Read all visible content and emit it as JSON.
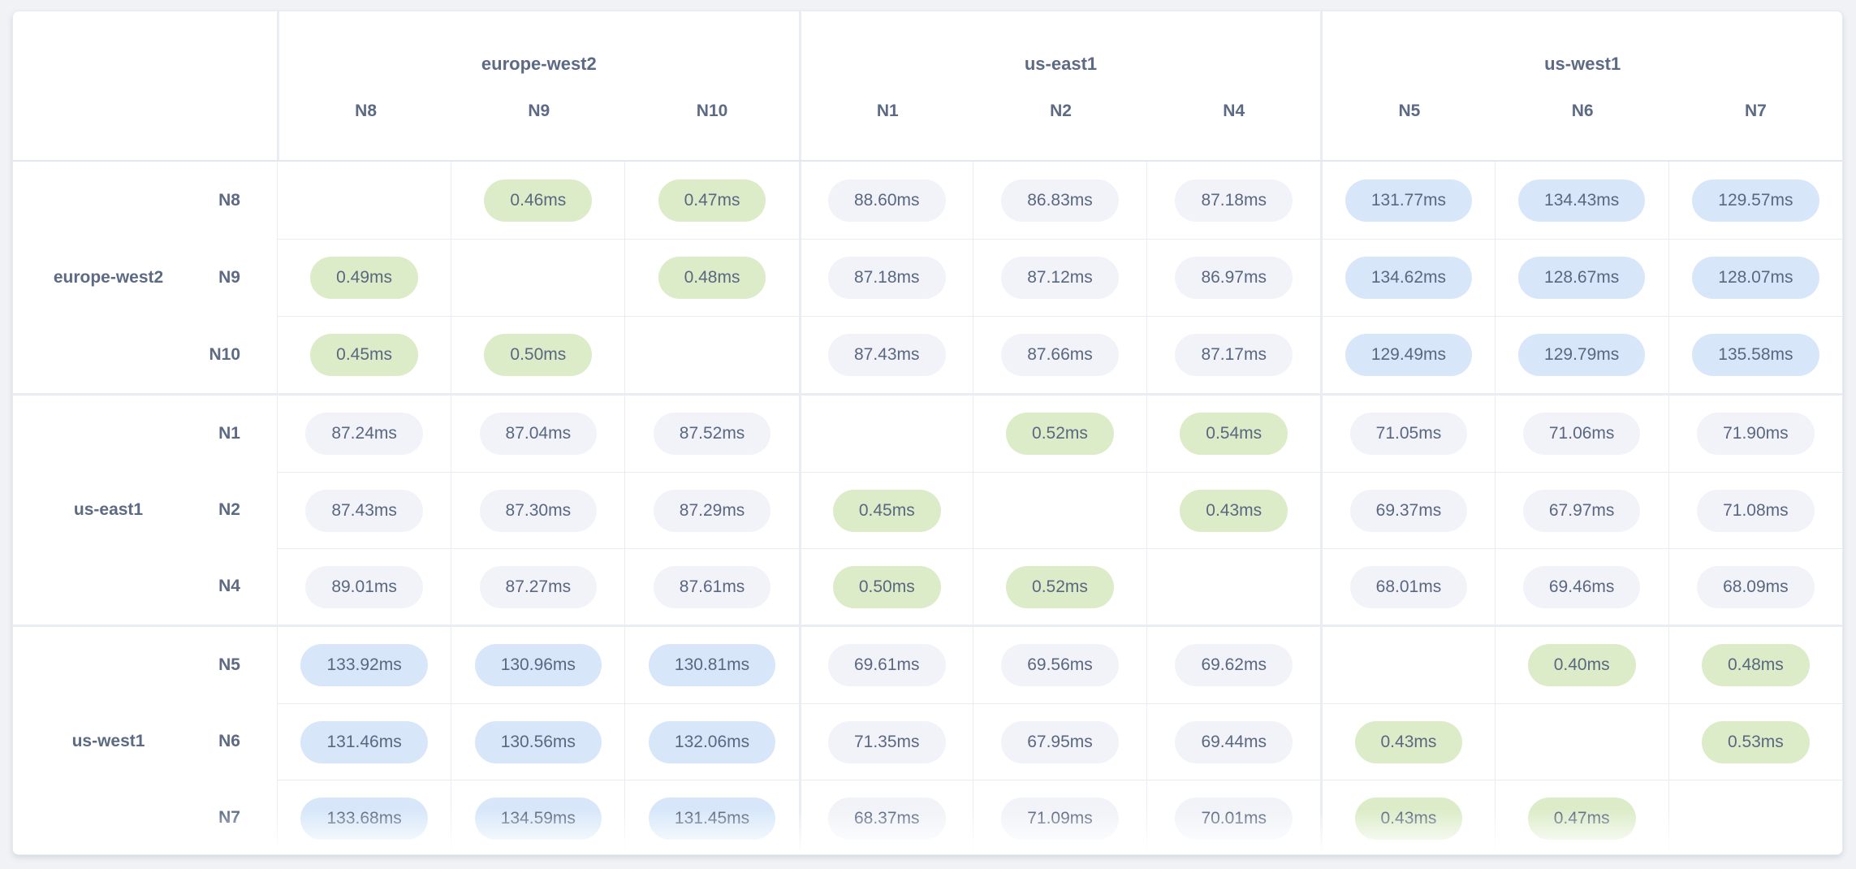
{
  "colors": {
    "low_latency_pill": "#dcecc8",
    "mid_latency_pill": "#f1f3f8",
    "high_latency_pill": "#d7e7f9",
    "text": "#5a6780"
  },
  "table": {
    "column_groups": [
      {
        "region": "europe-west2",
        "nodes": [
          "N8",
          "N9",
          "N10"
        ]
      },
      {
        "region": "us-east1",
        "nodes": [
          "N1",
          "N2",
          "N4"
        ]
      },
      {
        "region": "us-west1",
        "nodes": [
          "N5",
          "N6",
          "N7"
        ]
      }
    ],
    "row_groups": [
      {
        "region": "europe-west2",
        "rows": [
          {
            "node": "N8",
            "values": [
              "",
              "0.46ms",
              "0.47ms",
              "88.60ms",
              "86.83ms",
              "87.18ms",
              "131.77ms",
              "134.43ms",
              "129.57ms"
            ]
          },
          {
            "node": "N9",
            "values": [
              "0.49ms",
              "",
              "0.48ms",
              "87.18ms",
              "87.12ms",
              "86.97ms",
              "134.62ms",
              "128.67ms",
              "128.07ms"
            ]
          },
          {
            "node": "N10",
            "values": [
              "0.45ms",
              "0.50ms",
              "",
              "87.43ms",
              "87.66ms",
              "87.17ms",
              "129.49ms",
              "129.79ms",
              "135.58ms"
            ]
          }
        ]
      },
      {
        "region": "us-east1",
        "rows": [
          {
            "node": "N1",
            "values": [
              "87.24ms",
              "87.04ms",
              "87.52ms",
              "",
              "0.52ms",
              "0.54ms",
              "71.05ms",
              "71.06ms",
              "71.90ms"
            ]
          },
          {
            "node": "N2",
            "values": [
              "87.43ms",
              "87.30ms",
              "87.29ms",
              "0.45ms",
              "",
              "0.43ms",
              "69.37ms",
              "67.97ms",
              "71.08ms"
            ]
          },
          {
            "node": "N4",
            "values": [
              "89.01ms",
              "87.27ms",
              "87.61ms",
              "0.50ms",
              "0.52ms",
              "",
              "68.01ms",
              "69.46ms",
              "68.09ms"
            ]
          }
        ]
      },
      {
        "region": "us-west1",
        "rows": [
          {
            "node": "N5",
            "values": [
              "133.92ms",
              "130.96ms",
              "130.81ms",
              "69.61ms",
              "69.56ms",
              "69.62ms",
              "",
              "0.40ms",
              "0.48ms"
            ]
          },
          {
            "node": "N6",
            "values": [
              "131.46ms",
              "130.56ms",
              "132.06ms",
              "71.35ms",
              "67.95ms",
              "69.44ms",
              "0.43ms",
              "",
              "0.53ms"
            ]
          },
          {
            "node": "N7",
            "values": [
              "133.68ms",
              "134.59ms",
              "131.45ms",
              "68.37ms",
              "71.09ms",
              "70.01ms",
              "0.43ms",
              "0.47ms",
              ""
            ]
          }
        ]
      }
    ]
  }
}
